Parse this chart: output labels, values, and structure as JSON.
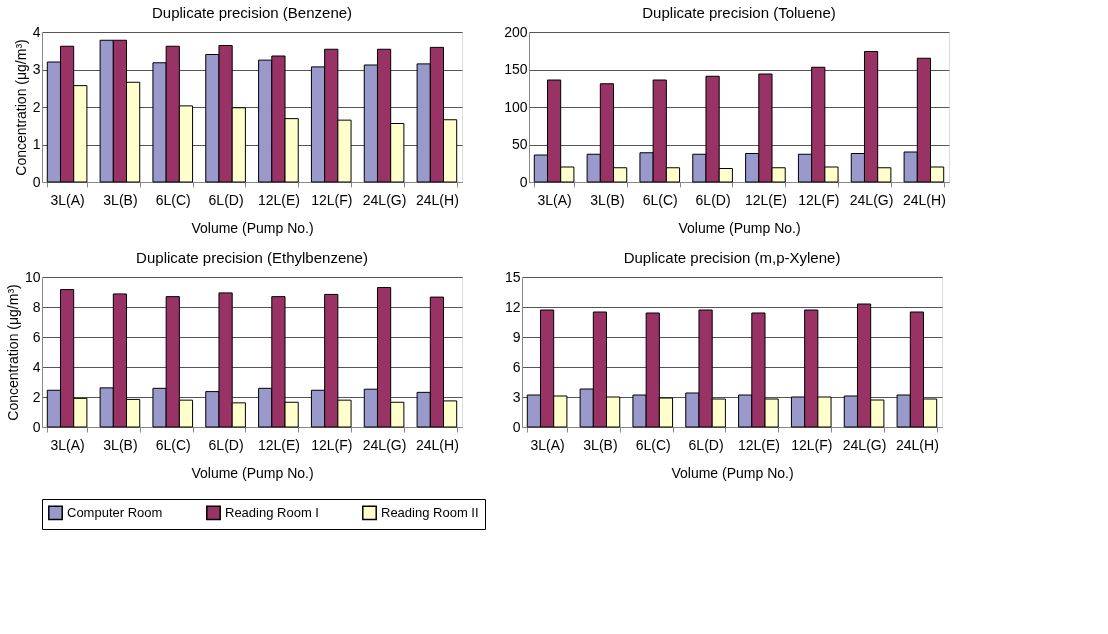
{
  "chart_data": [
    {
      "type": "bar",
      "title": "Duplicate precision (Benzene)",
      "xlabel": "Volume (Pump No.)",
      "ylabel": "Concentration (μg/m³)",
      "categories": [
        "3L(A)",
        "3L(B)",
        "6L(C)",
        "6L(D)",
        "12L(E)",
        "12L(F)",
        "24L(G)",
        "24L(H)"
      ],
      "ylim": [
        0,
        4
      ],
      "yticks": [
        0,
        1,
        2,
        3,
        4
      ],
      "grid": "y",
      "legend": "bottom",
      "series": [
        {
          "name": "Computer Room",
          "color": "#9999cc",
          "values": [
            3.2,
            3.78,
            3.18,
            3.4,
            3.25,
            3.07,
            3.12,
            3.15
          ]
        },
        {
          "name": "Reading Room I",
          "color": "#993366",
          "values": [
            3.62,
            3.78,
            3.62,
            3.64,
            3.36,
            3.54,
            3.54,
            3.59
          ]
        },
        {
          "name": "Reading Room II",
          "color": "#ffffcc",
          "values": [
            2.57,
            2.66,
            2.03,
            1.98,
            1.69,
            1.65,
            1.56,
            1.66
          ]
        }
      ]
    },
    {
      "type": "bar",
      "title": "Duplicate precision (Toluene)",
      "xlabel": "Volume (Pump No.)",
      "categories": [
        "3L(A)",
        "3L(B)",
        "6L(C)",
        "6L(D)",
        "12L(E)",
        "12L(F)",
        "24L(G)",
        "24L(H)"
      ],
      "ylim": [
        0,
        200
      ],
      "yticks": [
        0,
        50,
        100,
        150,
        200
      ],
      "grid": "y",
      "legend": "bottom",
      "series": [
        {
          "name": "Computer Room",
          "color": "#9999cc",
          "values": [
            36,
            37,
            39,
            37,
            38,
            37,
            38,
            40
          ]
        },
        {
          "name": "Reading Room I",
          "color": "#993366",
          "values": [
            136,
            131,
            136,
            141,
            144,
            153,
            174,
            165
          ]
        },
        {
          "name": "Reading Room II",
          "color": "#ffffcc",
          "values": [
            20,
            19,
            19,
            18,
            19,
            20,
            19,
            20
          ]
        }
      ]
    },
    {
      "type": "bar",
      "title": "Duplicate precision (Ethylbenzene)",
      "xlabel": "Volume (Pump No.)",
      "ylabel": "Concentration (μg/m³)",
      "categories": [
        "3L(A)",
        "3L(B)",
        "6L(C)",
        "6L(D)",
        "12L(E)",
        "12L(F)",
        "24L(G)",
        "24L(H)"
      ],
      "ylim": [
        0,
        10
      ],
      "yticks": [
        0,
        2,
        4,
        6,
        8,
        10
      ],
      "grid": "y",
      "legend": "bottom",
      "series": [
        {
          "name": "Computer Room",
          "color": "#9999cc",
          "values": [
            2.45,
            2.61,
            2.58,
            2.36,
            2.58,
            2.45,
            2.52,
            2.31
          ]
        },
        {
          "name": "Reading Room I",
          "color": "#993366",
          "values": [
            9.16,
            8.87,
            8.69,
            8.94,
            8.69,
            8.84,
            9.3,
            8.66
          ]
        },
        {
          "name": "Reading Room II",
          "color": "#ffffcc",
          "values": [
            1.91,
            1.84,
            1.79,
            1.61,
            1.65,
            1.79,
            1.65,
            1.74
          ]
        }
      ]
    },
    {
      "type": "bar",
      "title": "Duplicate precision (m,p-Xylene)",
      "xlabel": "Volume (Pump No.)",
      "categories": [
        "3L(A)",
        "3L(B)",
        "6L(C)",
        "6L(D)",
        "12L(E)",
        "12L(F)",
        "24L(G)",
        "24L(H)"
      ],
      "ylim": [
        0,
        15
      ],
      "yticks": [
        0,
        3,
        6,
        9,
        12,
        15
      ],
      "grid": "y",
      "legend": "bottom",
      "series": [
        {
          "name": "Computer Room",
          "color": "#9999cc",
          "values": [
            3.2,
            3.8,
            3.2,
            3.4,
            3.2,
            3.0,
            3.1,
            3.2
          ]
        },
        {
          "name": "Reading Room I",
          "color": "#993366",
          "values": [
            11.7,
            11.5,
            11.4,
            11.7,
            11.4,
            11.7,
            12.3,
            11.5
          ]
        },
        {
          "name": "Reading Room II",
          "color": "#ffffcc",
          "values": [
            3.1,
            3.0,
            2.9,
            2.8,
            2.8,
            3.0,
            2.7,
            2.8
          ]
        }
      ]
    }
  ]
}
